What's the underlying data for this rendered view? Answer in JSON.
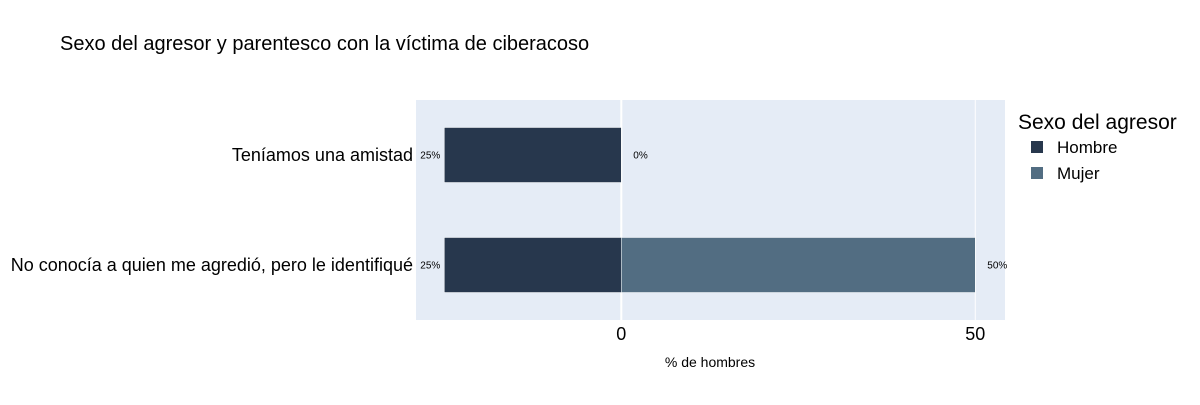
{
  "chart_data": {
    "type": "bar",
    "orientation": "horizontal",
    "barmode": "relative",
    "title": "Sexo del agresor y parentesco con la víctima de ciberacoso",
    "xlabel": "% de hombres",
    "ylabel": "",
    "categories": [
      "Teníamos una amistad",
      "No conocía a quien me agredió, pero le identifiqué"
    ],
    "x_ticks": [
      0,
      50
    ],
    "xlim": [
      -29,
      54.2
    ],
    "grid": true,
    "legend": {
      "title": "Sexo del agresor",
      "placement": "right"
    },
    "series": [
      {
        "name": "Hombre",
        "color": "#27374D",
        "values": [
          -25,
          -25
        ],
        "labels": [
          "25%",
          "25%"
        ]
      },
      {
        "name": "Mujer",
        "color": "#526D82",
        "values": [
          0,
          50
        ],
        "labels": [
          "0%",
          "50%"
        ]
      }
    ],
    "plot_background": "#E5ECF6",
    "gridline_color": "#FFFFFF"
  }
}
